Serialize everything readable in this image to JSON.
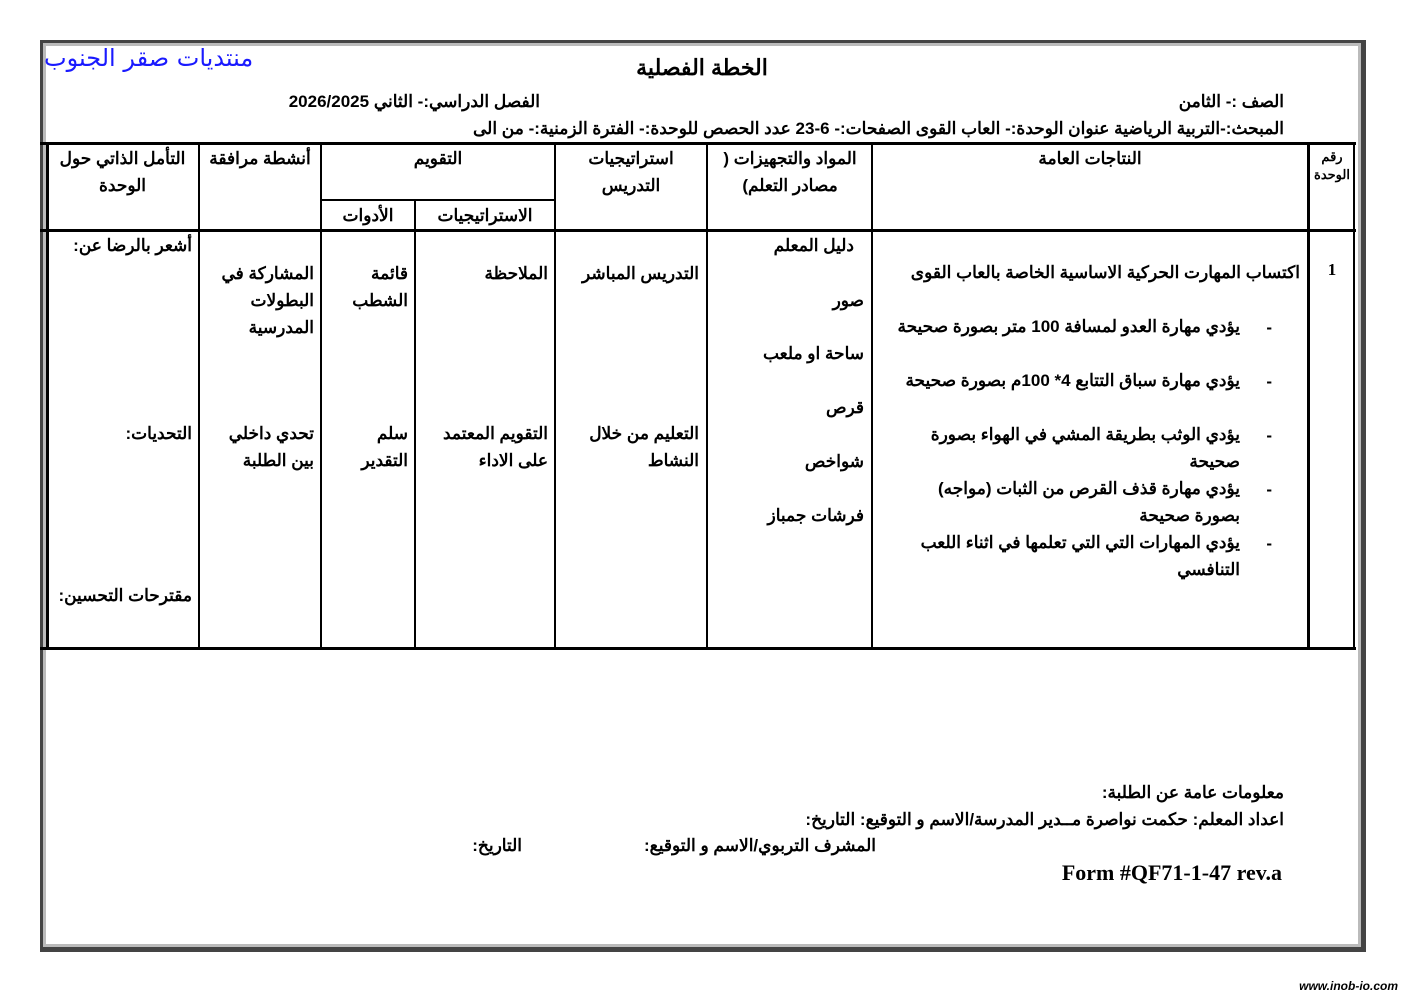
{
  "watermark": "منتديات صقر الجنوب",
  "title": "الخطة الفصلية",
  "header": {
    "grade": "الصف :- الثامن",
    "semester": "الفصل الدراسي:- الثاني 2026/2025",
    "subject_line": "المبحث:-التربية الرياضية عنوان الوحدة:- العاب القوى   الصفحات:-  6-23    عدد الحصص للوحدة:-    الفترة الزمنية:- من الى"
  },
  "table": {
    "headers": {
      "unit_no": "رقم الوحدة",
      "outcomes": "النتاجات العامة",
      "materials": "المواد والتجهيزات ( مصادر التعلم)",
      "strategies": "استراتيجيات التدريس",
      "evaluation": "التقويم",
      "eval_strategies": "الاستراتيجيات",
      "eval_tools": "الأدوات",
      "activities": "أنشطة مرافقة",
      "reflection": "التأمل الذاتي حول الوحدة"
    },
    "row": {
      "unit_no": "1",
      "outcome_main": "اكتساب المهارت الحركية الاساسية الخاصة بالعاب القوى",
      "outcomes": [
        "يؤدي مهارة العدو لمسافة 100 متر بصورة صحيحة",
        "يؤدي مهارة سباق التتابع 4* 100م بصورة صحيحة",
        "يؤدي الوثب بطريقة المشي في الهواء بصورة صحيحة",
        "يؤدي مهارة قذف القرص من الثبات (مواجه) بصورة صحيحة",
        "يؤدي المهارات التي التي تعلمها في اثناء اللعب التنافسي"
      ],
      "materials": [
        "دليل المعلم",
        "صور",
        "ساحة او ملعب",
        "قرص",
        "شواخص",
        "فرشات جمباز"
      ],
      "strategies": [
        "التدريس المباشر",
        "التعليم من خلال النشاط"
      ],
      "eval_strategies": [
        "الملاحظة",
        "التقويم المعتمد على الاداء"
      ],
      "eval_tools": [
        "قائمة الشطب",
        "سلم التقدير"
      ],
      "activities": [
        "المشاركة في البطولات المدرسية",
        "تحدي داخلي بين الطلبة"
      ],
      "reflection": [
        "أشعر بالرضا عن:",
        "التحديات:",
        "مقترحات التحسين:"
      ]
    }
  },
  "footer": {
    "students_info": "معلومات عامة عن الطلبة:",
    "teacher_line": "اعداد المعلم: حكمت نواصرة   مــدير المدرسة/الاسم و التوقيع: التاريخ:",
    "supervisor": "المشرف التربوي/الاسم و التوقيع:",
    "supervisor_date": "التاريخ:",
    "form_no": "Form #QF71-1-47 rev.a"
  },
  "site": "www.inob-io.com"
}
